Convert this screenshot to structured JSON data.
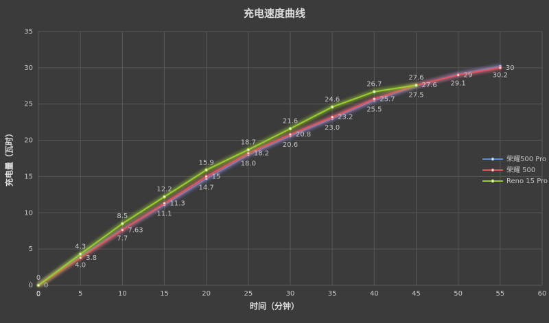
{
  "chart_data": {
    "type": "line",
    "title": "充电速度曲线",
    "x_label": "时间（分钟）",
    "y_label": "充电量（瓦时）",
    "x": [
      0,
      5,
      10,
      15,
      20,
      25,
      30,
      35,
      40,
      45,
      50,
      55
    ],
    "xlim": [
      0,
      60
    ],
    "xticks": [
      0,
      5,
      10,
      15,
      20,
      25,
      30,
      35,
      40,
      45,
      50,
      55,
      60
    ],
    "ylim": [
      0,
      35
    ],
    "yticks": [
      0,
      5,
      10,
      15,
      20,
      25,
      30,
      35
    ],
    "grid": true,
    "legend": "right",
    "series": [
      {
        "name": "荣耀500 Pro",
        "color": "#5b8fd9",
        "values": [
          0,
          4,
          7.7,
          11.1,
          14.7,
          18,
          20.6,
          23,
          25.5,
          27.5,
          29.1,
          30.2
        ],
        "value_labels": [
          "0",
          "4.0",
          "7.7",
          "11.1",
          "14.7",
          "18.0",
          "20.6",
          "23.0",
          "25.5",
          "27.5",
          "29.1",
          "30.2"
        ]
      },
      {
        "name": "荣耀 500",
        "color": "#e0575a",
        "values": [
          0,
          3.8,
          7.63,
          11.3,
          15,
          18.2,
          20.8,
          23.2,
          25.7,
          27.6,
          29,
          30
        ]
      },
      {
        "name": "Reno 15 Pro",
        "color": "#9acd32",
        "values": [
          0,
          4.3,
          8.5,
          12.2,
          15.9,
          18.7,
          21.6,
          24.6,
          26.7,
          27.6,
          null,
          null
        ]
      }
    ]
  }
}
